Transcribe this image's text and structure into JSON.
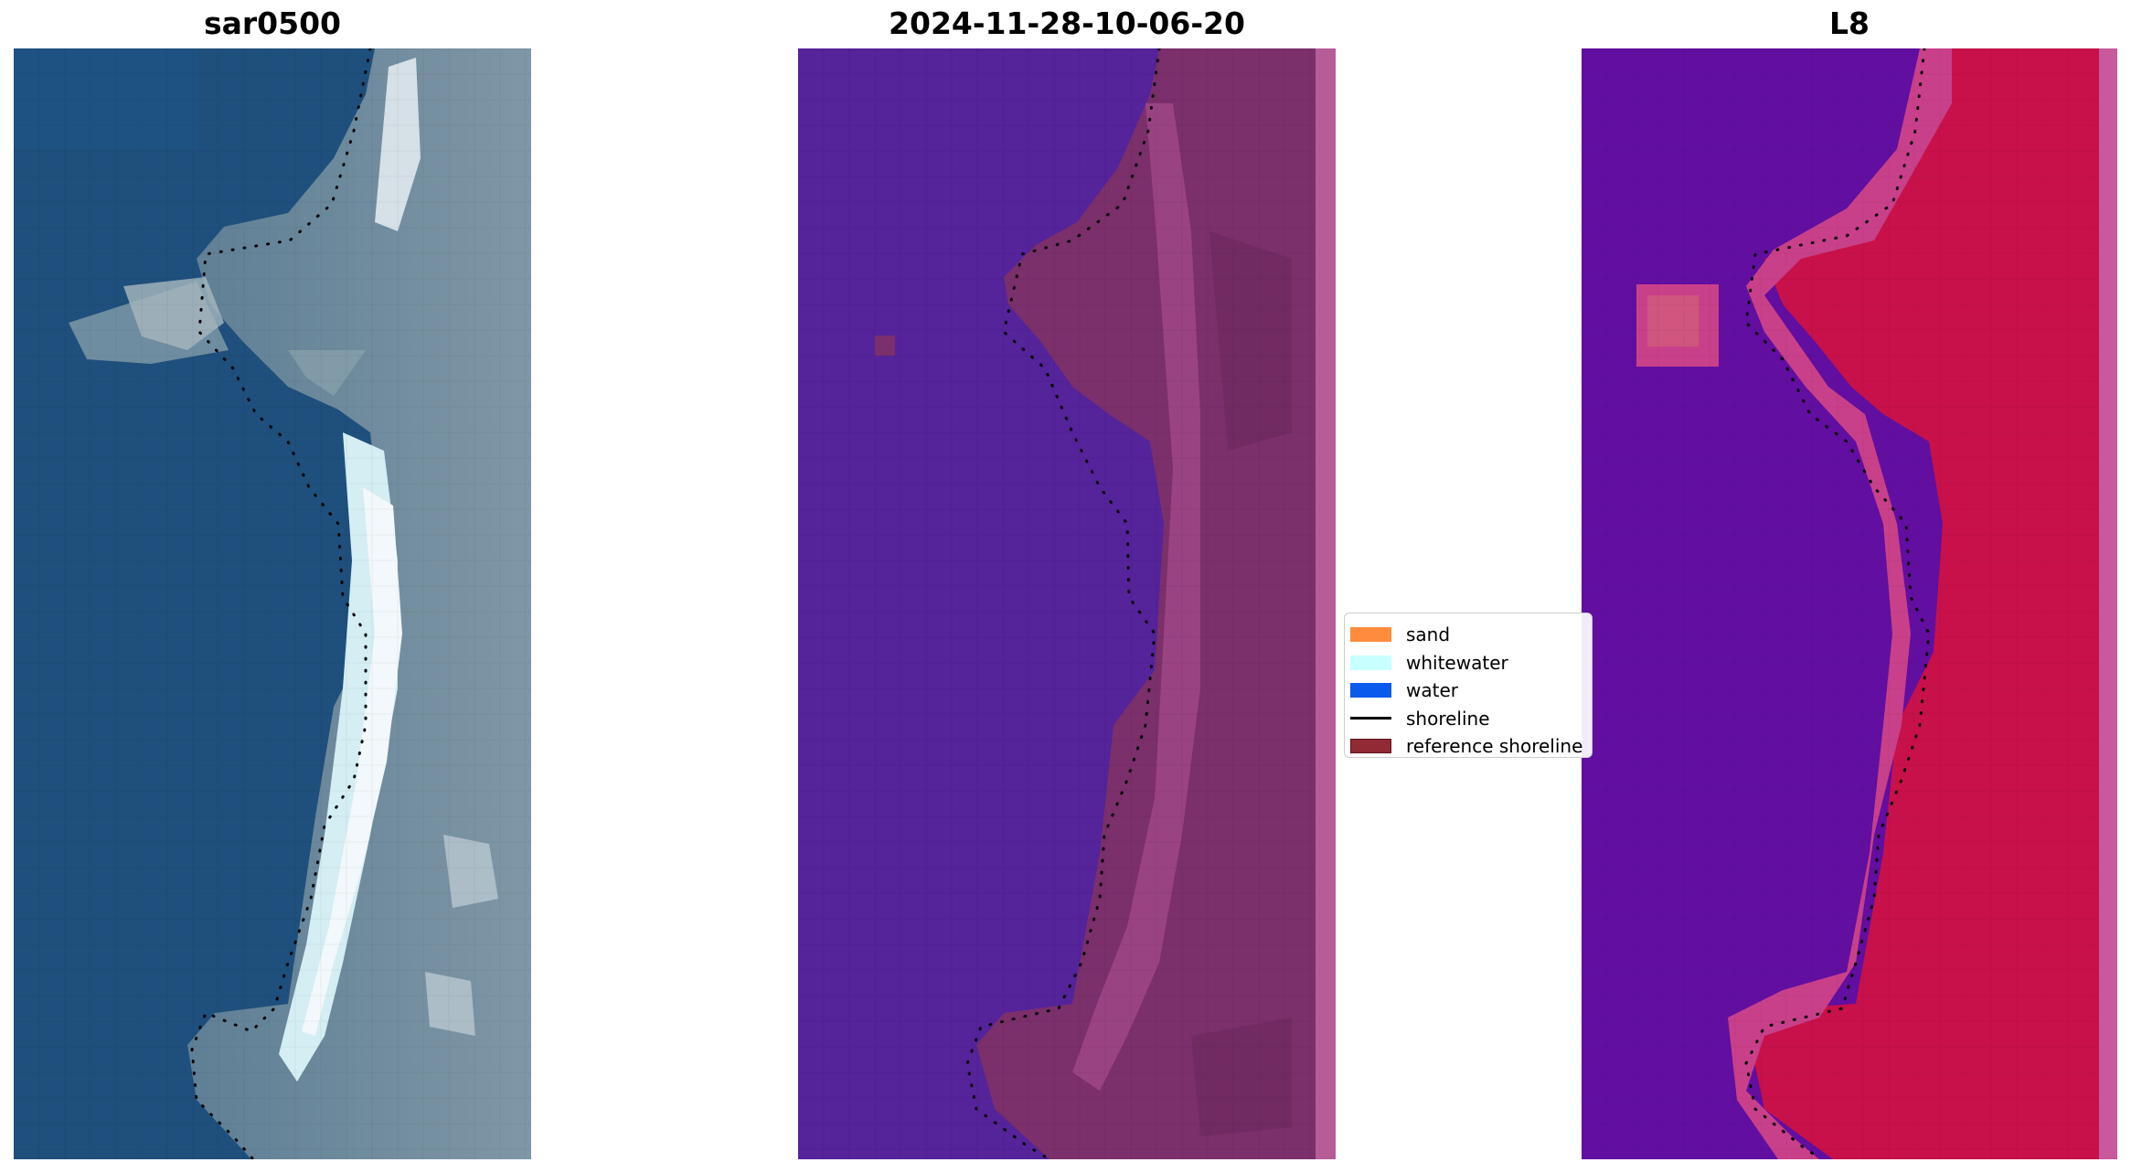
{
  "panels": [
    {
      "title": "sar0500"
    },
    {
      "title": "2024-11-28-10-06-20"
    },
    {
      "title": "L8"
    }
  ],
  "legend": {
    "items": [
      {
        "label": "sand",
        "color": "#ff8c3c",
        "kind": "patch"
      },
      {
        "label": "whitewater",
        "color": "#c8ffff",
        "kind": "patch"
      },
      {
        "label": "water",
        "color": "#0a5aeb",
        "kind": "patch"
      },
      {
        "label": "shoreline",
        "color": "#000000",
        "kind": "line"
      },
      {
        "label": "reference shoreline",
        "color": "#922a35",
        "kind": "patch"
      }
    ]
  }
}
